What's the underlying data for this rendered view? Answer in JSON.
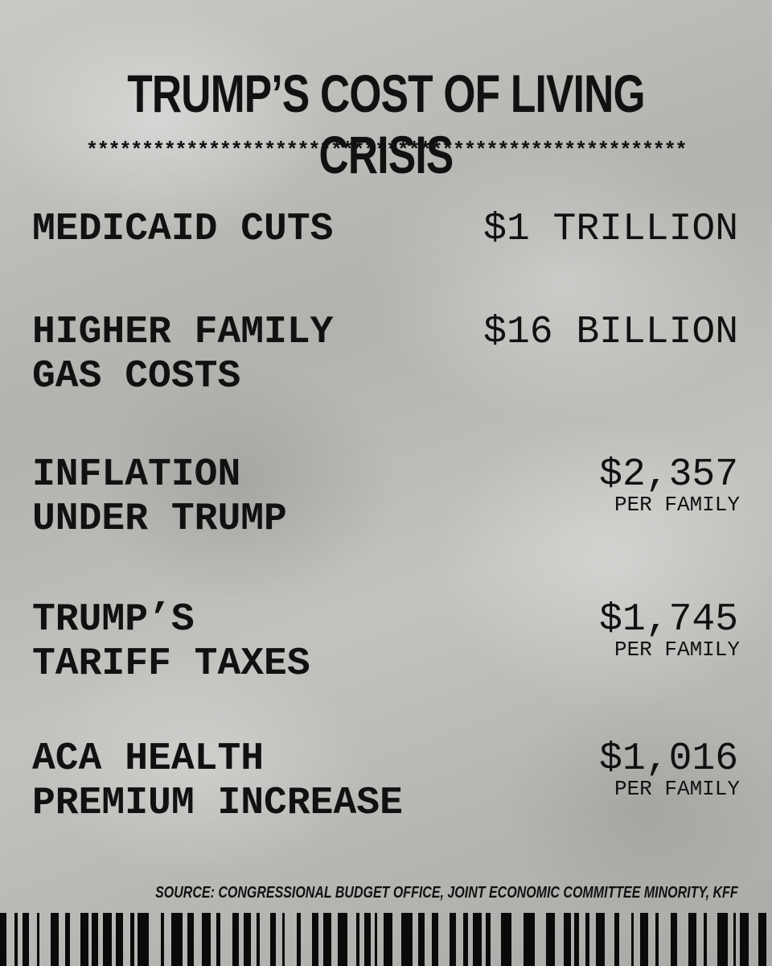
{
  "title": "TRUMP’S COST OF LIVING CRISIS",
  "divider": "******************************************************",
  "items": [
    {
      "label": [
        "MEDICAID CUTS"
      ],
      "amount": "$1 TRILLION"
    },
    {
      "label": [
        "HIGHER FAMILY",
        "GAS COSTS"
      ],
      "amount": "$16 BILLION"
    },
    {
      "label": [
        "INFLATION",
        "UNDER TRUMP"
      ],
      "amount": "$2,357",
      "unit": "PER FAMILY"
    },
    {
      "label": [
        "TRUMP’S",
        "TARIFF TAXES"
      ],
      "amount": "$1,745",
      "unit": "PER FAMILY"
    },
    {
      "label": [
        "ACA HEALTH",
        "PREMIUM INCREASE"
      ],
      "amount": "$1,016",
      "unit": "PER FAMILY"
    }
  ],
  "source": "SOURCE: CONGRESSIONAL BUDGET OFFICE, JOINT ECONOMIC COMMITTEE MINORITY, KFF"
}
